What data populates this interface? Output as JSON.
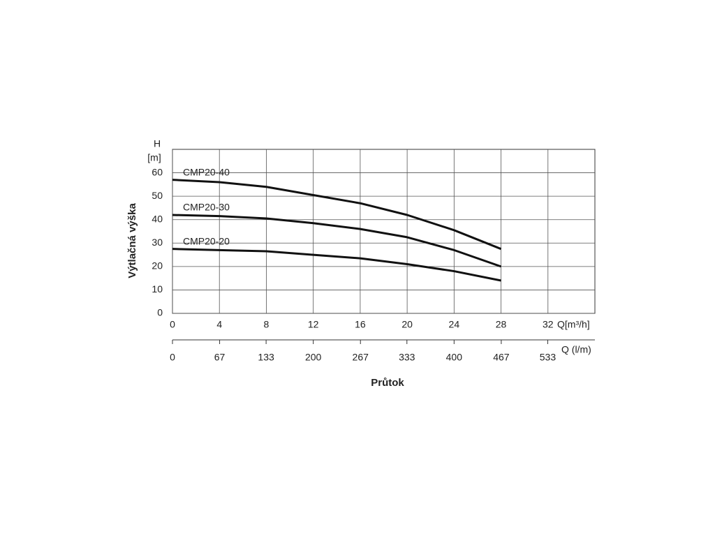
{
  "chart_data": {
    "type": "line",
    "y_label": "Výtlačná výška",
    "y_unit_label": "H",
    "y_unit": "[m]",
    "x_label": "Průtok",
    "x_axis_label": "Q[m³/h]",
    "x2_axis_label": "Q (l/m)",
    "x": [
      0,
      4,
      8,
      12,
      16,
      20,
      24,
      28
    ],
    "series": [
      {
        "name": "CMP20-40",
        "color": "#111111",
        "values": [
          57,
          56,
          54,
          50.5,
          47,
          42,
          35.5,
          27.5
        ]
      },
      {
        "name": "CMP20-30",
        "color": "#111111",
        "values": [
          42,
          41.5,
          40.5,
          38.5,
          36,
          32.5,
          27,
          20
        ]
      },
      {
        "name": "CMP20-20",
        "color": "#111111",
        "values": [
          27.5,
          27,
          26.5,
          25,
          23.5,
          21,
          18,
          14
        ]
      }
    ],
    "xlim": [
      0,
      36
    ],
    "xticks": [
      0,
      4,
      8,
      12,
      16,
      20,
      24,
      28,
      32
    ],
    "x2lim": [
      0,
      600
    ],
    "x2ticks": [
      0,
      67,
      133,
      200,
      267,
      333,
      400,
      467,
      533
    ],
    "ylim": [
      0,
      70
    ],
    "yticks": [
      0,
      10,
      20,
      30,
      40,
      50,
      60
    ],
    "grid": true
  }
}
